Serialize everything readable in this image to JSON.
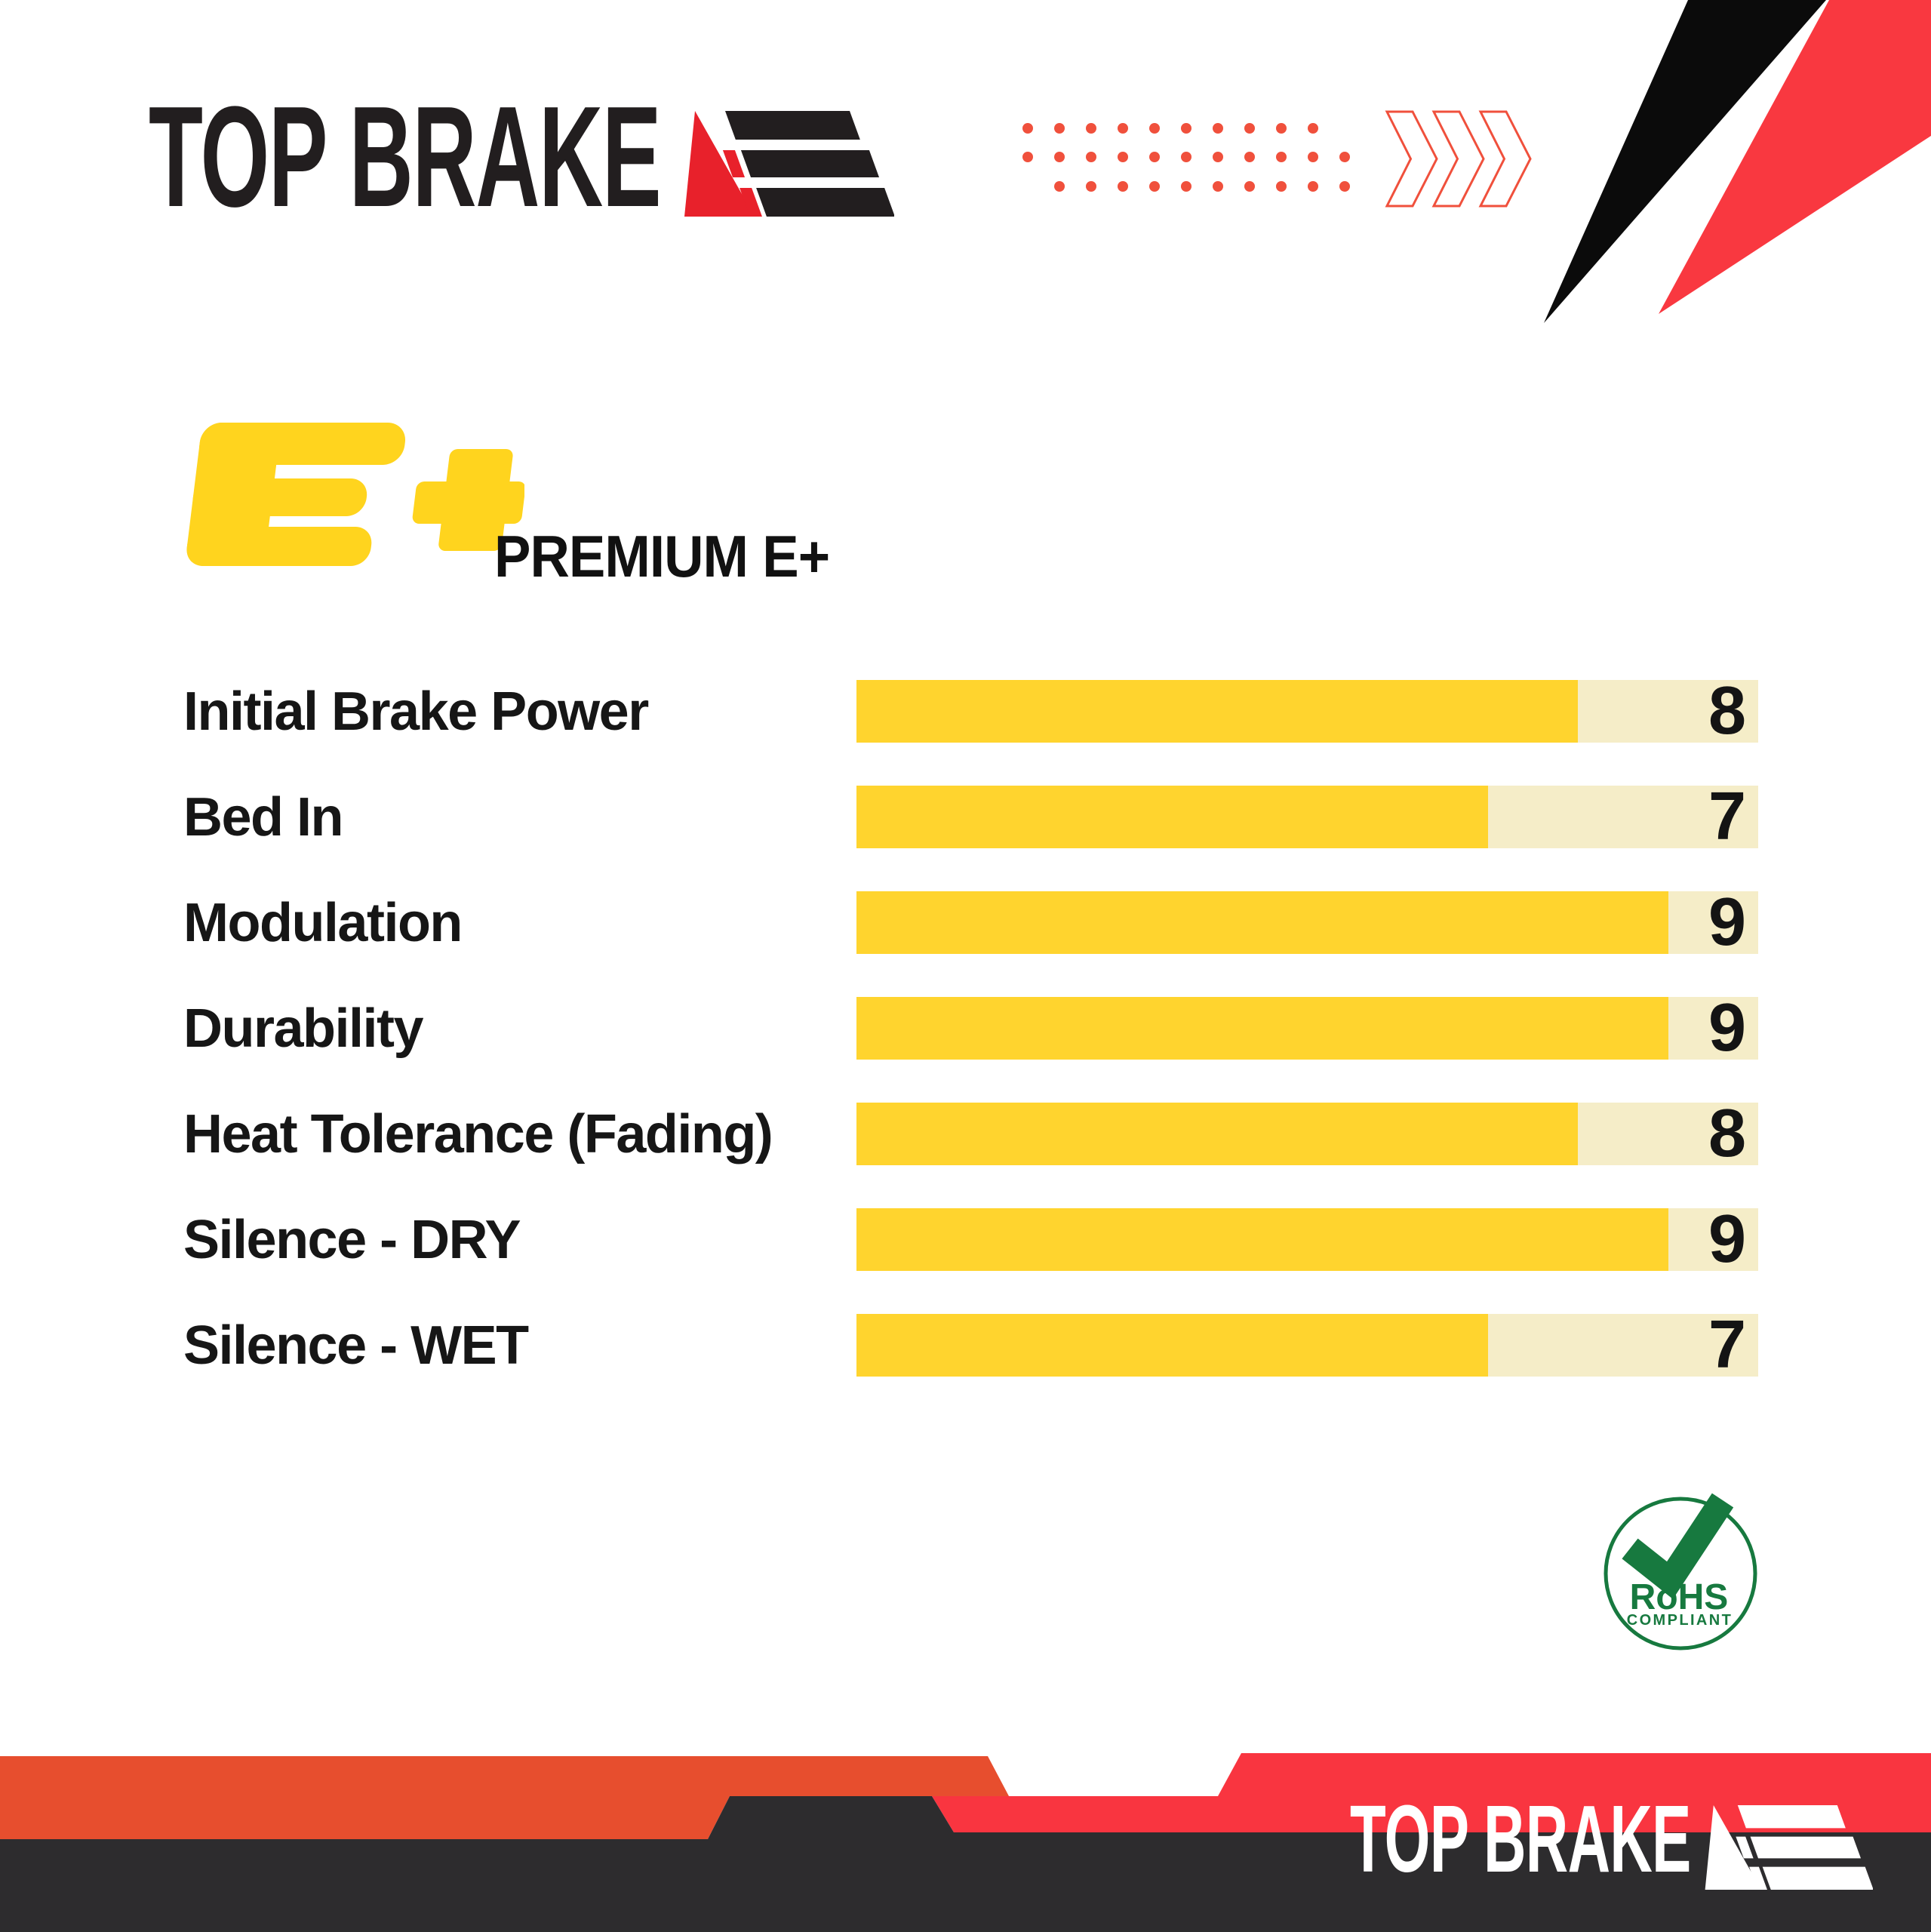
{
  "header": {
    "logo_text": "TOP BRAKE"
  },
  "product": {
    "logo_text": "E+",
    "name": "PREMIUM E+"
  },
  "chart_data": {
    "type": "bar",
    "orientation": "horizontal",
    "title": "PREMIUM E+",
    "categories": [
      "Initial Brake Power",
      "Bed In",
      "Modulation",
      "Durability",
      "Heat Tolerance (Fading)",
      "Silence - DRY",
      "Silence - WET"
    ],
    "values": [
      8,
      7,
      9,
      9,
      8,
      9,
      7
    ],
    "scale_max": 10,
    "bar_color": "#FFD42E",
    "track_color": "#F5EDC8",
    "value_label_color": "#141414",
    "legend": "none",
    "grid": "off"
  },
  "rohs_badge": {
    "title": "RoHS",
    "subtitle": "COMPLIANT",
    "color": "#17793F"
  },
  "footer": {
    "logo_text": "TOP BRAKE"
  },
  "colors": {
    "logo_black": "#221E1F",
    "logo_red": "#E8212B",
    "accent_yellow": "#FFD41E",
    "dots_red": "#F0503C",
    "chevron_red": "#F0503C",
    "spike_black": "#0B0B0B",
    "spike_red": "#F93840",
    "banner_orange": "#E74E2E",
    "banner_red": "#F93540",
    "banner_dark": "#2D2C2E",
    "badge_green": "#17793F"
  },
  "decor": {
    "dot_rows": [
      10,
      11,
      10
    ],
    "chevron_count": 3
  }
}
